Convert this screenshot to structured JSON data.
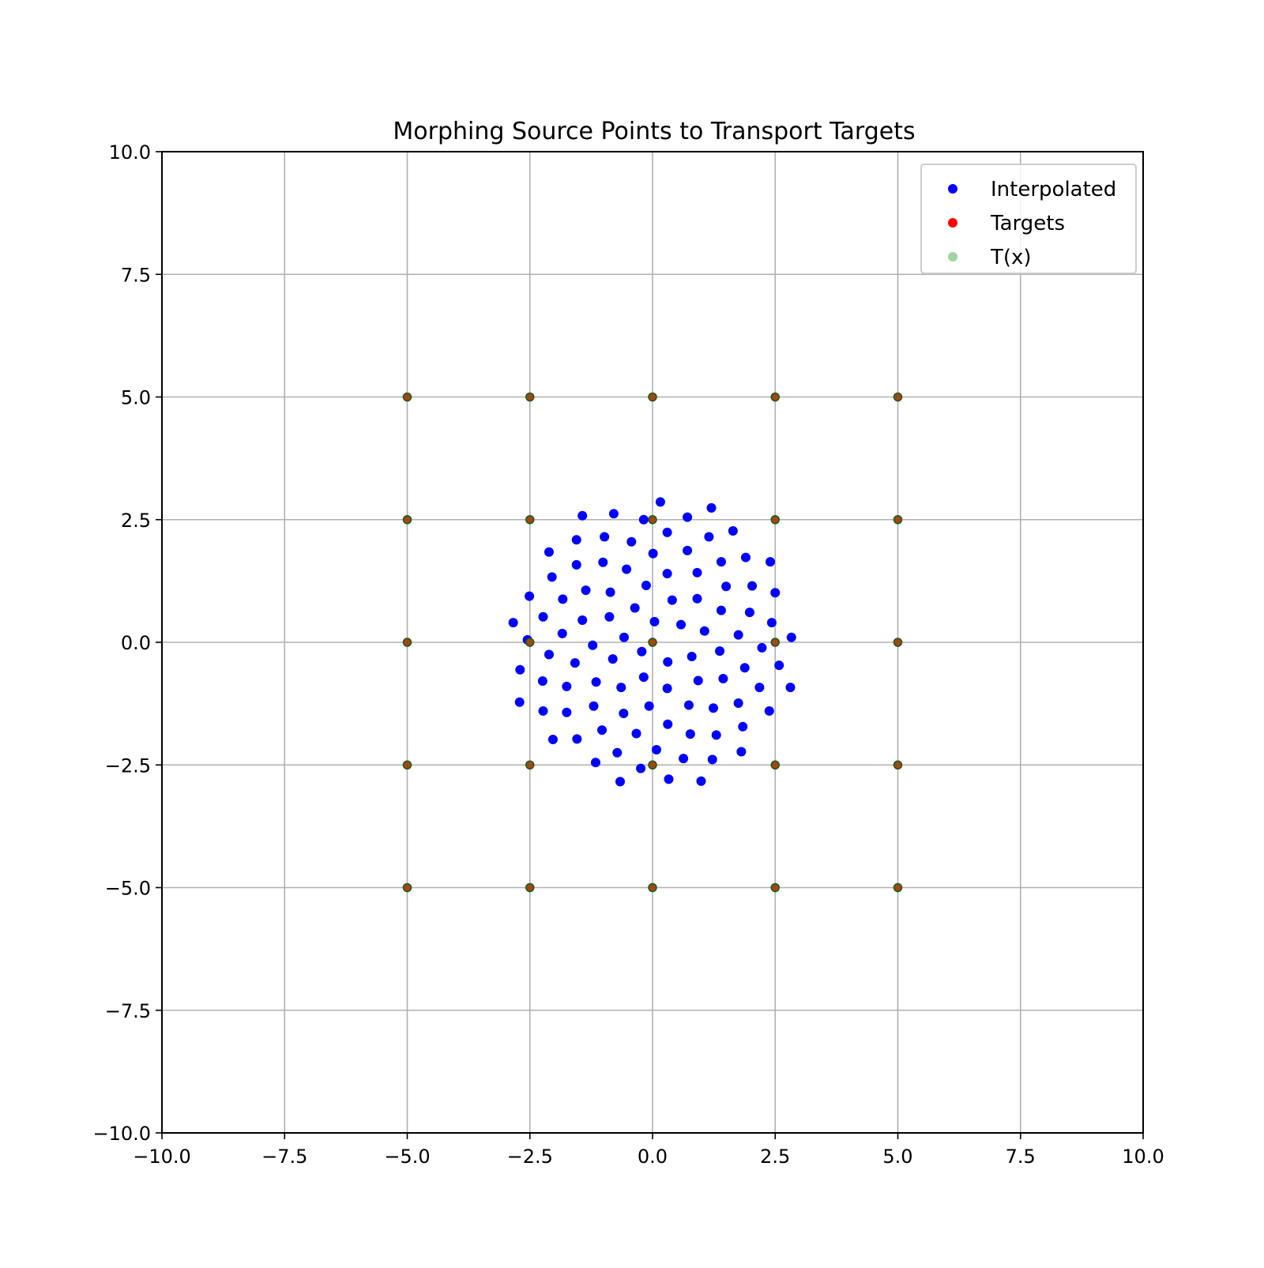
{
  "chart_data": {
    "type": "scatter",
    "title": "Morphing Source Points to Transport Targets",
    "xlabel": "",
    "ylabel": "",
    "xlim": [
      -10,
      10
    ],
    "ylim": [
      -10,
      10
    ],
    "grid": true,
    "legend_position": "top-right",
    "x_ticks": [
      -10.0,
      -7.5,
      -5.0,
      -2.5,
      0.0,
      2.5,
      5.0,
      7.5,
      10.0
    ],
    "y_ticks": [
      -10.0,
      -7.5,
      -5.0,
      -2.5,
      0.0,
      2.5,
      5.0,
      7.5,
      10.0
    ],
    "x_tick_labels": [
      "−10.0",
      "−7.5",
      "−5.0",
      "−2.5",
      "0.0",
      "2.5",
      "5.0",
      "7.5",
      "10.0"
    ],
    "y_tick_labels": [
      "−10.0",
      "−7.5",
      "−5.0",
      "−2.5",
      "0.0",
      "2.5",
      "5.0",
      "7.5",
      "10.0"
    ],
    "series": [
      {
        "name": "Interpolated",
        "color": "#0000ff",
        "points": [
          [
            0.16,
            2.86
          ],
          [
            1.2,
            2.74
          ],
          [
            -0.79,
            2.62
          ],
          [
            -1.43,
            2.58
          ],
          [
            0.71,
            2.55
          ],
          [
            -0.18,
            2.5
          ],
          [
            1.64,
            2.27
          ],
          [
            0.3,
            2.24
          ],
          [
            -0.98,
            2.15
          ],
          [
            1.15,
            2.15
          ],
          [
            -1.55,
            2.09
          ],
          [
            -0.43,
            2.05
          ],
          [
            1.9,
            1.73
          ],
          [
            -2.11,
            1.84
          ],
          [
            0.71,
            1.87
          ],
          [
            0.01,
            1.81
          ],
          [
            2.4,
            1.64
          ],
          [
            -1.01,
            1.63
          ],
          [
            1.4,
            1.64
          ],
          [
            -1.55,
            1.58
          ],
          [
            -0.53,
            1.49
          ],
          [
            0.91,
            1.42
          ],
          [
            0.3,
            1.4
          ],
          [
            -2.05,
            1.33
          ],
          [
            -0.13,
            1.16
          ],
          [
            1.5,
            1.14
          ],
          [
            2.03,
            1.15
          ],
          [
            -1.36,
            1.06
          ],
          [
            -0.86,
            1.02
          ],
          [
            2.5,
            1.01
          ],
          [
            -2.51,
            0.94
          ],
          [
            -1.83,
            0.88
          ],
          [
            0.4,
            0.86
          ],
          [
            0.91,
            0.89
          ],
          [
            -0.36,
            0.7
          ],
          [
            1.4,
            0.65
          ],
          [
            1.98,
            0.61
          ],
          [
            -2.23,
            0.52
          ],
          [
            -0.88,
            0.52
          ],
          [
            -1.43,
            0.45
          ],
          [
            0.04,
            0.42
          ],
          [
            2.43,
            0.4
          ],
          [
            -2.84,
            0.4
          ],
          [
            0.58,
            0.36
          ],
          [
            1.06,
            0.23
          ],
          [
            -1.84,
            0.18
          ],
          [
            1.75,
            0.15
          ],
          [
            -0.58,
            0.1
          ],
          [
            2.83,
            0.1
          ],
          [
            -2.55,
            0.05
          ],
          [
            -1.22,
            -0.06
          ],
          [
            2.23,
            -0.11
          ],
          [
            -2.11,
            -0.25
          ],
          [
            -0.22,
            -0.19
          ],
          [
            1.37,
            -0.18
          ],
          [
            0.8,
            -0.29
          ],
          [
            -0.81,
            -0.34
          ],
          [
            0.31,
            -0.4
          ],
          [
            -1.58,
            -0.42
          ],
          [
            2.58,
            -0.47
          ],
          [
            -2.7,
            -0.56
          ],
          [
            1.88,
            -0.52
          ],
          [
            -0.18,
            -0.71
          ],
          [
            1.44,
            -0.74
          ],
          [
            -2.24,
            -0.79
          ],
          [
            -1.15,
            -0.81
          ],
          [
            0.93,
            -0.78
          ],
          [
            -1.75,
            -0.9
          ],
          [
            0.3,
            -0.94
          ],
          [
            2.18,
            -0.92
          ],
          [
            2.81,
            -0.92
          ],
          [
            -0.64,
            -0.92
          ],
          [
            -2.71,
            -1.22
          ],
          [
            1.75,
            -1.24
          ],
          [
            0.74,
            -1.28
          ],
          [
            -1.2,
            -1.3
          ],
          [
            1.24,
            -1.34
          ],
          [
            -0.07,
            -1.3
          ],
          [
            -2.23,
            -1.4
          ],
          [
            -1.75,
            -1.43
          ],
          [
            -0.59,
            -1.45
          ],
          [
            2.38,
            -1.4
          ],
          [
            0.31,
            -1.67
          ],
          [
            1.84,
            -1.72
          ],
          [
            -1.03,
            -1.79
          ],
          [
            -0.33,
            -1.86
          ],
          [
            0.77,
            -1.87
          ],
          [
            1.3,
            -1.89
          ],
          [
            -2.03,
            -1.98
          ],
          [
            -1.54,
            -1.97
          ],
          [
            0.08,
            -2.19
          ],
          [
            -0.72,
            -2.25
          ],
          [
            1.81,
            -2.23
          ],
          [
            0.63,
            -2.37
          ],
          [
            1.22,
            -2.39
          ],
          [
            -1.16,
            -2.45
          ],
          [
            -0.24,
            -2.57
          ],
          [
            0.33,
            -2.79
          ],
          [
            -0.66,
            -2.84
          ],
          [
            0.99,
            -2.83
          ]
        ]
      },
      {
        "name": "Targets",
        "color": "#ff0000",
        "points": [
          [
            -5,
            5
          ],
          [
            -2.5,
            5
          ],
          [
            0,
            5
          ],
          [
            2.5,
            5
          ],
          [
            5,
            5
          ],
          [
            -5,
            2.5
          ],
          [
            -2.5,
            2.5
          ],
          [
            0,
            2.5
          ],
          [
            2.5,
            2.5
          ],
          [
            5,
            2.5
          ],
          [
            -5,
            0
          ],
          [
            -2.5,
            0
          ],
          [
            0,
            0
          ],
          [
            2.5,
            0
          ],
          [
            5,
            0
          ],
          [
            -5,
            -2.5
          ],
          [
            -2.5,
            -2.5
          ],
          [
            0,
            -2.5
          ],
          [
            2.5,
            -2.5
          ],
          [
            5,
            -2.5
          ],
          [
            -5,
            -5
          ],
          [
            -2.5,
            -5
          ],
          [
            0,
            -5
          ],
          [
            2.5,
            -5
          ],
          [
            5,
            -5
          ]
        ]
      },
      {
        "name": "T(x)",
        "color": "#2ca02c",
        "points": [
          [
            -5,
            5
          ],
          [
            -2.5,
            5
          ],
          [
            0,
            5
          ],
          [
            2.5,
            5
          ],
          [
            5,
            5
          ],
          [
            -5,
            2.5
          ],
          [
            -2.5,
            2.5
          ],
          [
            0,
            2.5
          ],
          [
            2.5,
            2.5
          ],
          [
            5,
            2.5
          ],
          [
            -5,
            0
          ],
          [
            -2.5,
            0
          ],
          [
            0,
            0
          ],
          [
            2.5,
            0
          ],
          [
            5,
            0
          ],
          [
            -5,
            -2.5
          ],
          [
            -2.5,
            -2.5
          ],
          [
            0,
            -2.5
          ],
          [
            2.5,
            -2.5
          ],
          [
            5,
            -2.5
          ],
          [
            -5,
            -5
          ],
          [
            -2.5,
            -5
          ],
          [
            0,
            -5
          ],
          [
            2.5,
            -5
          ],
          [
            5,
            -5
          ]
        ]
      }
    ]
  }
}
